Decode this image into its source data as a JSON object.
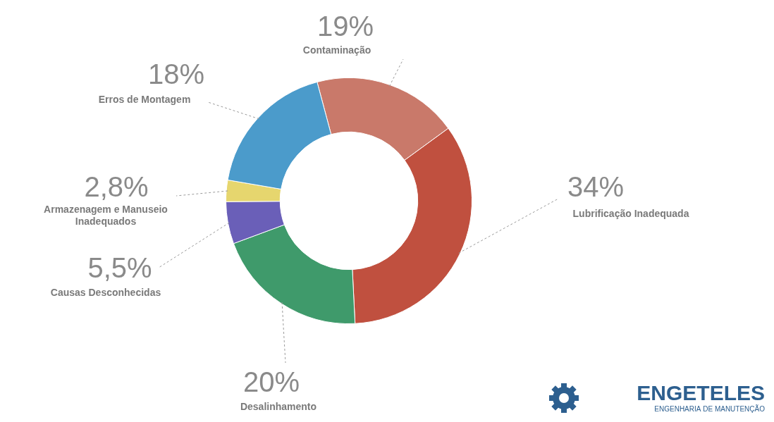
{
  "chart_data": {
    "type": "doughnut",
    "categories": [
      "Contaminação",
      "Lubrificação Inadequada",
      "Desalinhamento",
      "Causas Desconhecidas",
      "Armazenagem e Manuseio Inadequados",
      "Erros de Montagem"
    ],
    "values": [
      19,
      34,
      20,
      5.5,
      2.8,
      18
    ],
    "value_labels": [
      "19%",
      "34%",
      "20%",
      "5,5%",
      "2,8%",
      "18%"
    ],
    "colors": [
      "#c9796a",
      "#c0503f",
      "#3f9a6b",
      "#6a5fb8",
      "#e6d66e",
      "#4b9bcb"
    ],
    "data_labels": true,
    "annotations": [
      "ENGETELES",
      "ENGENHARIA DE MANUTENÇÃO"
    ]
  }
}
